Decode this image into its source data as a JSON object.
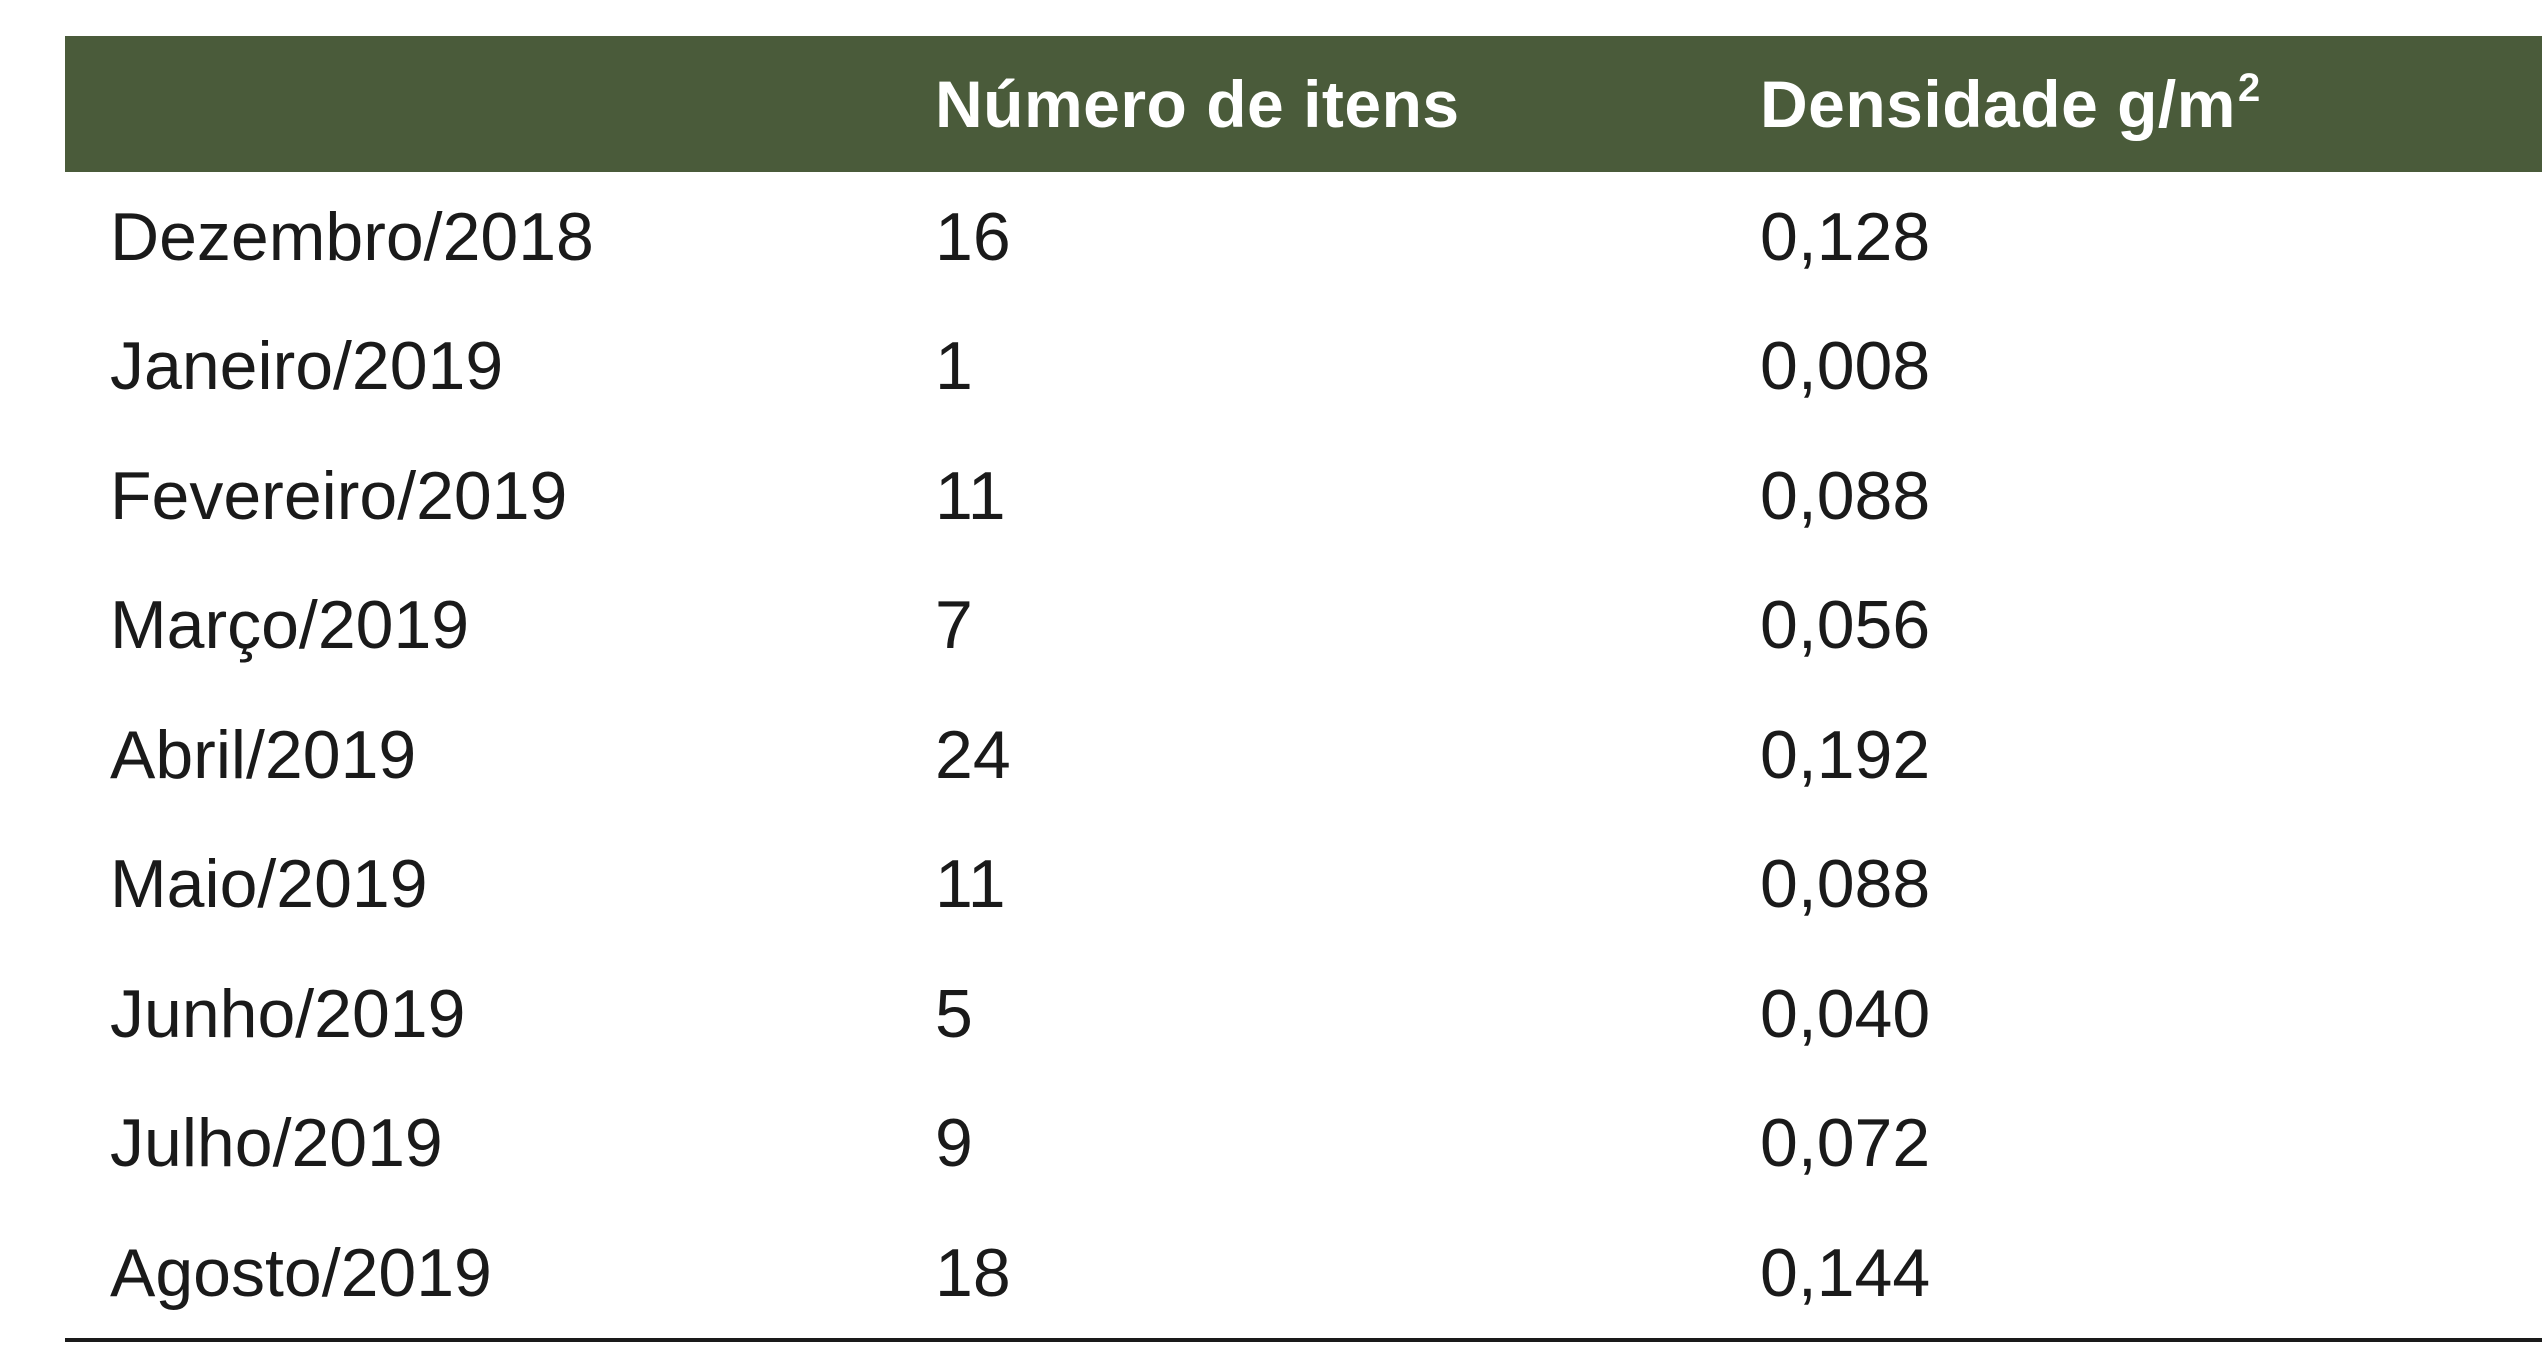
{
  "table": {
    "headers": [
      "",
      "Número de itens",
      "Densidade g/m",
      "2"
    ],
    "header_col1": "",
    "header_col2": "Número de itens",
    "header_col3_base": "Densidade g/m",
    "header_col3_sup": "2",
    "header_color": "#4a5b3a",
    "rows": [
      {
        "month": "Dezembro/2018",
        "items": "16",
        "density": "0,128"
      },
      {
        "month": "Janeiro/2019",
        "items": "1",
        "density": "0,008"
      },
      {
        "month": "Fevereiro/2019",
        "items": "11",
        "density": "0,088"
      },
      {
        "month": "Março/2019",
        "items": "7",
        "density": "0,056"
      },
      {
        "month": "Abril/2019",
        "items": "24",
        "density": "0,192"
      },
      {
        "month": "Maio/2019",
        "items": "11",
        "density": "0,088"
      },
      {
        "month": "Junho/2019",
        "items": "5",
        "density": "0,040"
      },
      {
        "month": "Julho/2019",
        "items": "9",
        "density": "0,072"
      },
      {
        "month": "Agosto/2019",
        "items": "18",
        "density": "0,144"
      }
    ]
  }
}
